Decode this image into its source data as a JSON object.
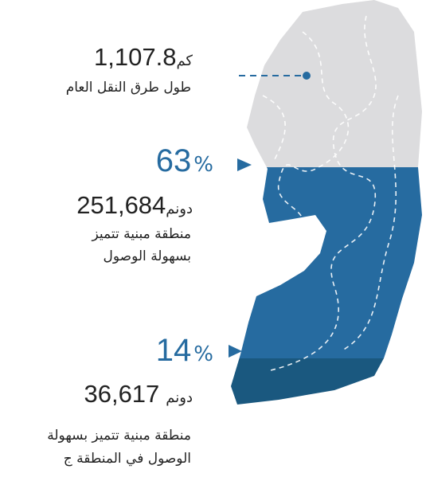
{
  "roads": {
    "value": "1,107.8",
    "unit": "كم",
    "label": "طول طرق النقل العام"
  },
  "accessible": {
    "percent": "63",
    "percent_sign": "%",
    "value": "251,684",
    "unit": "دونم",
    "label_lines": [
      "منطقة مبنية تتميز",
      "بسهولة الوصول"
    ]
  },
  "area_c": {
    "percent": "14",
    "percent_sign": "%",
    "value": "36,617",
    "unit": "دونم",
    "label_lines": [
      "منطقة مبنية تتميز بسهولة",
      "الوصول في المنطقة ج"
    ]
  }
}
